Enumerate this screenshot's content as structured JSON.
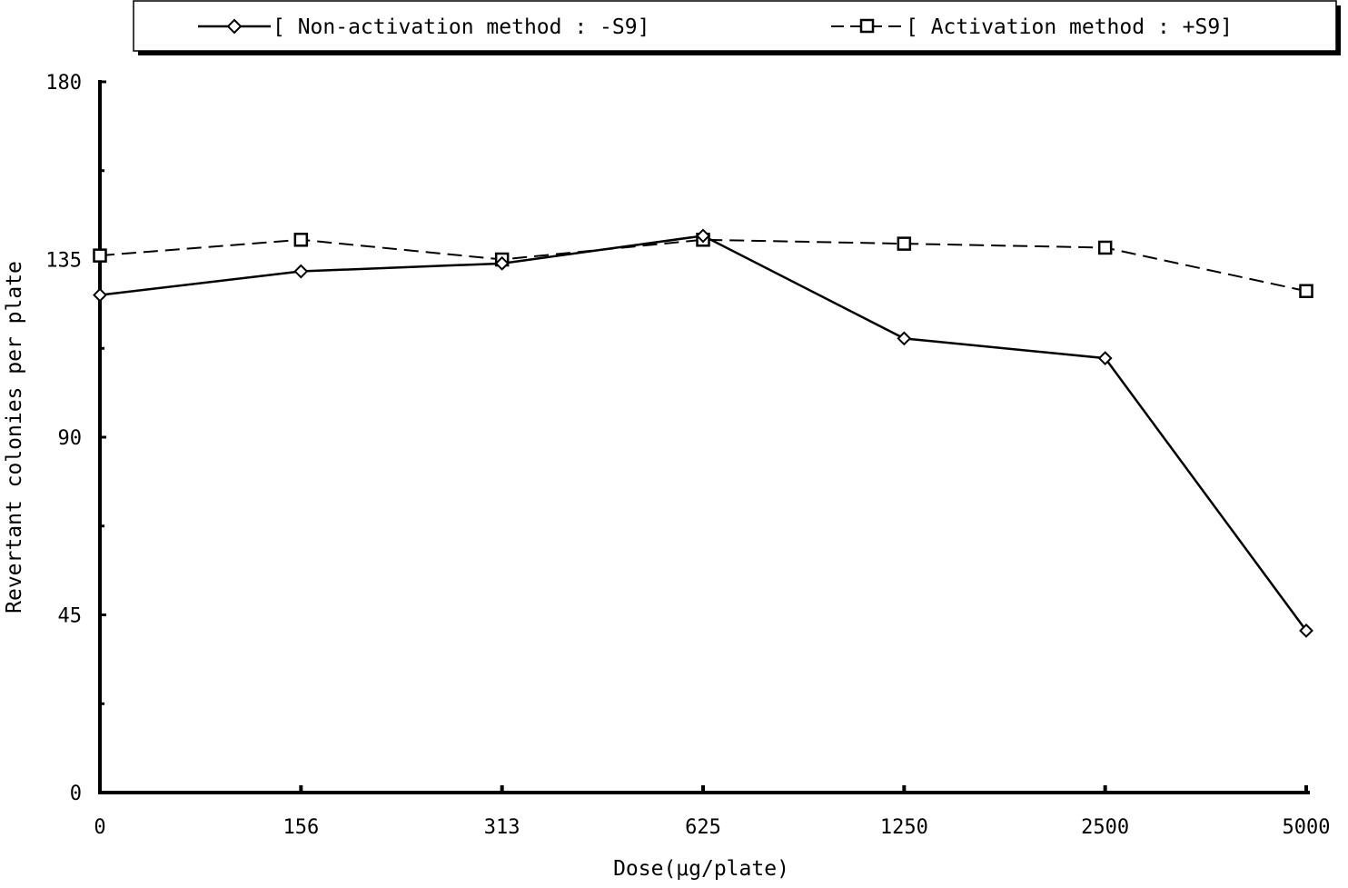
{
  "chart_data": {
    "type": "line",
    "title": "",
    "xlabel": "Dose(μg/plate)",
    "ylabel": "Revertant colonies per plate",
    "categories": [
      "0",
      "156",
      "313",
      "625",
      "1250",
      "2500",
      "5000"
    ],
    "ylim": [
      0,
      180
    ],
    "yticks": [
      "0",
      "45",
      "90",
      "135",
      "180"
    ],
    "legend_position": "top",
    "grid": false,
    "series": [
      {
        "name": "[ Non-activation method : -S9]",
        "marker": "diamond",
        "line": "solid",
        "color": "#000000",
        "values": [
          126,
          132,
          134,
          141,
          115,
          110,
          41
        ]
      },
      {
        "name": "[ Activation method : +S9]",
        "marker": "square",
        "line": "dashed",
        "color": "#000000",
        "values": [
          136,
          140,
          135,
          140,
          139,
          138,
          127
        ]
      }
    ]
  }
}
